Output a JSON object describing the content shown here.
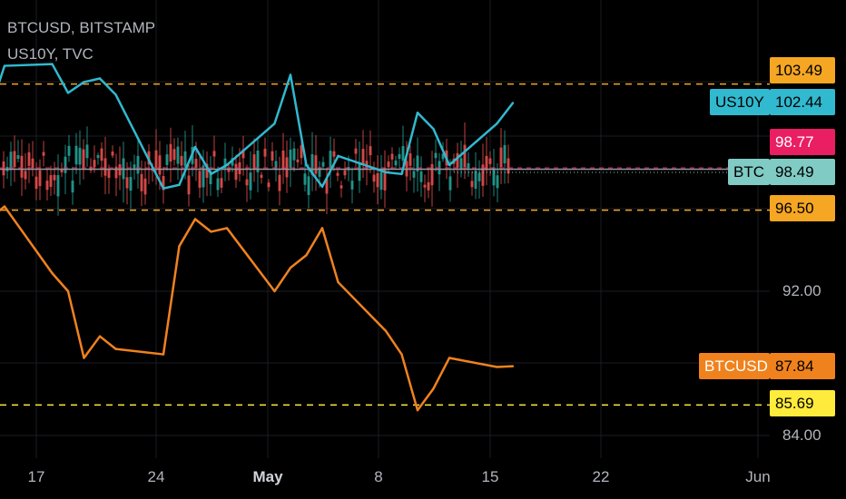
{
  "legend": {
    "line1": "BTCUSD, BITSTAMP",
    "line2": "US10Y, TVC"
  },
  "price_badges": {
    "top_level": "103.49",
    "us10y_label": "US10Y",
    "us10y_value": "102.44",
    "pink_value": "98.77",
    "btc_label": "BTC",
    "btc_value": "98.49",
    "mid_level": "96.50",
    "btcusd_label": "BTCUSD",
    "btcusd_value": "87.84",
    "bottom_level": "85.69"
  },
  "colors": {
    "background": "#000000",
    "us10y": "#31b9cf",
    "btcusd": "#f0821e",
    "level_line": "#f5a623",
    "candle_up": "#26a69a",
    "candle_down": "#ef5350",
    "pink": "#e91e63",
    "btc_teal": "#80cbc4",
    "yellow": "#ffeb3b"
  },
  "chart_data": {
    "type": "line",
    "title": "",
    "y_axis_ticks": [
      "92.00",
      "84.00"
    ],
    "x_axis_ticks": [
      "17",
      "24",
      "May",
      "8",
      "15",
      "22",
      "Jun"
    ],
    "horizontal_levels": [
      103.49,
      98.77,
      96.5,
      85.69
    ],
    "series": [
      {
        "name": "US10Y",
        "x": [
          "Apr 12",
          "Apr 13",
          "Apr 14",
          "Apr 15",
          "Apr 18",
          "Apr 19",
          "Apr 20",
          "Apr 21",
          "Apr 22",
          "Apr 25",
          "Apr 26",
          "Apr 27",
          "Apr 28",
          "Apr 29",
          "May 2",
          "May 3",
          "May 4",
          "May 5",
          "May 6",
          "May 9",
          "May 10",
          "May 11",
          "May 12",
          "May 13",
          "May 16",
          "May 17"
        ],
        "values": [
          100.5,
          101.7,
          101.8,
          104.5,
          104.6,
          103.0,
          103.6,
          103.8,
          102.9,
          97.7,
          97.9,
          100.0,
          98.5,
          99.0,
          101.3,
          104.0,
          99.0,
          97.8,
          99.5,
          98.6,
          98.5,
          101.9,
          101.0,
          99.0,
          101.3,
          102.44
        ]
      },
      {
        "name": "BTCUSD",
        "x": [
          "Apr 12",
          "Apr 13",
          "Apr 14",
          "Apr 15",
          "Apr 18",
          "Apr 19",
          "Apr 20",
          "Apr 21",
          "Apr 22",
          "Apr 25",
          "Apr 26",
          "Apr 27",
          "Apr 28",
          "Apr 29",
          "May 2",
          "May 3",
          "May 4",
          "May 5",
          "May 6",
          "May 9",
          "May 10",
          "May 11",
          "May 12",
          "May 13",
          "May 16",
          "May 17"
        ],
        "values": [
          98.6,
          98.5,
          96.0,
          96.7,
          93.0,
          92.0,
          88.3,
          89.5,
          88.8,
          88.5,
          94.5,
          96.0,
          95.3,
          95.5,
          92.0,
          93.3,
          94.0,
          95.5,
          92.5,
          89.8,
          88.5,
          85.4,
          86.6,
          88.3,
          87.8,
          87.84
        ]
      }
    ]
  }
}
